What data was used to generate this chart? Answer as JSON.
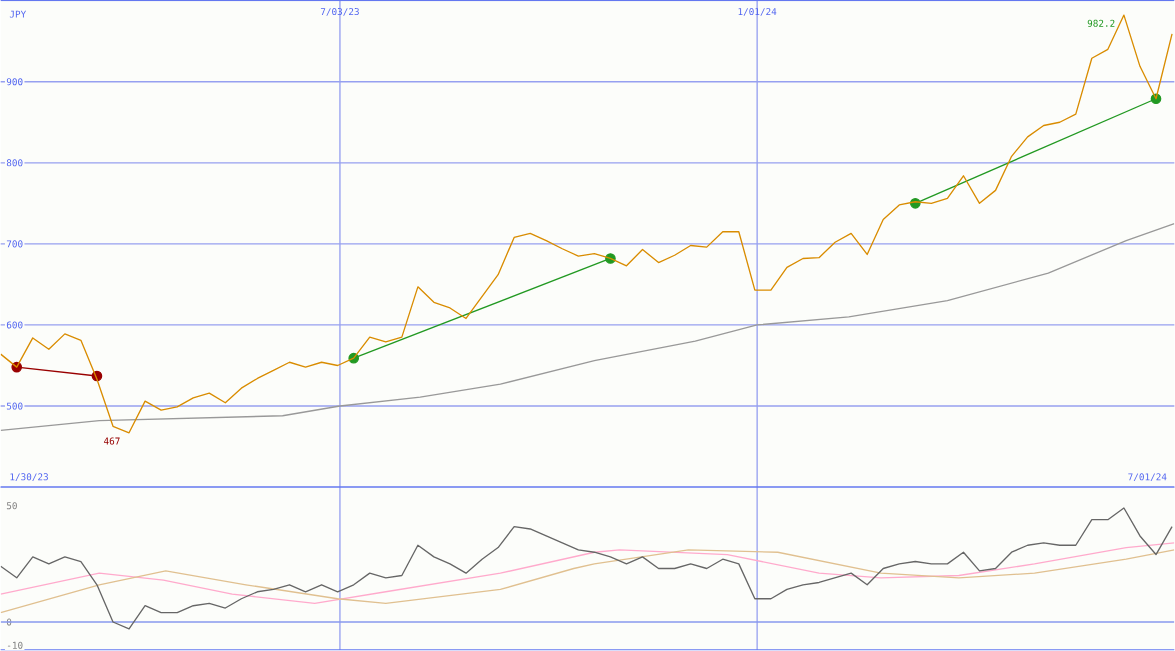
{
  "chart_data": [
    {
      "type": "line",
      "ylabel": "JPY",
      "xlim": [
        "2023-02-05",
        "2024-07-01"
      ],
      "ylim": [
        400,
        1000
      ],
      "xticks": [
        {
          "value": "2023-07-03",
          "label": "7/03/23"
        },
        {
          "value": "2024-01-01",
          "label": "1/01/24"
        }
      ],
      "yticks": [
        500,
        600,
        700,
        800,
        900
      ],
      "grid": true,
      "series": [
        {
          "color": "#999999",
          "x": [
            "2023-02-05",
            "2023-03-20",
            "2023-06-08",
            "2023-07-03",
            "2023-08-07",
            "2023-09-11",
            "2023-10-22",
            "2023-12-05",
            "2024-01-01",
            "2024-02-10",
            "2024-03-24",
            "2024-05-07",
            "2024-06-10",
            "2024-07-01"
          ],
          "values": [
            470,
            482,
            488,
            500,
            511,
            527,
            556,
            580,
            600,
            610,
            630,
            664,
            704,
            725
          ]
        },
        {
          "color": "#990000",
          "marker": "circle",
          "x": [
            "2023-02-12",
            "2023-03-19"
          ],
          "values": [
            548,
            537
          ]
        },
        {
          "color": "#229922",
          "marker": "circle",
          "x": [
            "2023-07-09",
            "2023-10-29"
          ],
          "values": [
            559,
            682
          ]
        },
        {
          "color": "#229922",
          "marker": "circle",
          "x": [
            "2024-03-10",
            "2024-06-23"
          ],
          "values": [
            750,
            879
          ]
        },
        {
          "color": "#d98c00",
          "x": [
            "2023-02-05",
            "2023-02-12",
            "2023-02-19",
            "2023-02-26",
            "2023-03-05",
            "2023-03-12",
            "2023-03-19",
            "2023-03-26",
            "2023-04-02",
            "2023-04-09",
            "2023-04-16",
            "2023-04-23",
            "2023-04-30",
            "2023-05-07",
            "2023-05-14",
            "2023-05-21",
            "2023-05-28",
            "2023-06-04",
            "2023-06-11",
            "2023-06-18",
            "2023-06-25",
            "2023-07-02",
            "2023-07-09",
            "2023-07-16",
            "2023-07-23",
            "2023-07-30",
            "2023-08-06",
            "2023-08-13",
            "2023-08-20",
            "2023-08-27",
            "2023-09-03",
            "2023-09-10",
            "2023-09-17",
            "2023-09-24",
            "2023-10-01",
            "2023-10-08",
            "2023-10-15",
            "2023-10-22",
            "2023-10-29",
            "2023-11-05",
            "2023-11-12",
            "2023-11-19",
            "2023-11-26",
            "2023-12-03",
            "2023-12-10",
            "2023-12-17",
            "2023-12-24",
            "2023-12-31",
            "2024-01-07",
            "2024-01-14",
            "2024-01-21",
            "2024-01-28",
            "2024-02-04",
            "2024-02-11",
            "2024-02-18",
            "2024-02-25",
            "2024-03-03",
            "2024-03-10",
            "2024-03-17",
            "2024-03-24",
            "2024-03-31",
            "2024-04-07",
            "2024-04-14",
            "2024-04-21",
            "2024-04-28",
            "2024-05-05",
            "2024-05-12",
            "2024-05-19",
            "2024-05-26",
            "2024-06-02",
            "2024-06-09",
            "2024-06-16",
            "2024-06-23",
            "2024-06-30"
          ],
          "values": [
            564,
            548,
            584,
            570,
            589,
            581,
            533,
            475,
            467,
            506,
            495,
            499,
            510,
            516,
            504,
            522,
            534,
            544,
            554,
            548,
            554,
            550,
            559,
            585,
            579,
            585,
            647,
            628,
            621,
            608,
            635,
            662,
            708,
            713,
            704,
            694,
            685,
            688,
            682,
            673,
            693,
            677,
            686,
            698,
            696,
            715,
            715,
            643,
            643,
            671,
            682,
            683,
            702,
            713,
            687,
            730,
            748,
            752,
            750,
            756,
            784,
            750,
            766,
            808,
            832,
            846,
            850,
            860,
            929,
            940,
            982.2,
            919,
            879,
            959
          ]
        }
      ],
      "annotations": [
        "1/30/23",
        "7/01/24",
        {
          "text": "467",
          "x": "2023-04-02",
          "y": 467
        },
        {
          "text": "982.2",
          "x": "2024-06-09",
          "y": 982.2
        }
      ]
    },
    {
      "type": "line",
      "xlim": [
        "2023-02-05",
        "2024-07-01"
      ],
      "ylim": [
        -12,
        58
      ],
      "xticks": [
        {
          "value": "2023-07-03",
          "label": null
        },
        {
          "value": "2024-01-01",
          "label": null
        }
      ],
      "yticks": [
        -10,
        0,
        50
      ],
      "grid": "x",
      "tick_labels": "y",
      "ref_lines": [
        {
          "axis": "y",
          "value": 0,
          "color": "#8899ee"
        }
      ],
      "series": [
        {
          "color": "#ffaacc",
          "x": [
            "2023-02-05",
            "2023-03-20",
            "2023-04-17",
            "2023-05-17",
            "2023-06-22",
            "2023-07-23",
            "2023-09-11",
            "2023-10-22",
            "2023-11-02",
            "2023-12-19",
            "2024-01-28",
            "2024-02-24",
            "2024-03-29",
            "2024-05-01",
            "2024-06-10",
            "2024-07-01"
          ],
          "values": [
            12,
            21,
            18,
            12,
            8,
            13,
            21,
            30,
            31,
            29,
            21,
            19,
            20,
            25,
            32,
            34
          ]
        },
        {
          "color": "#e0c090",
          "x": [
            "2023-02-05",
            "2023-03-20",
            "2023-04-18",
            "2023-05-23",
            "2023-07-02",
            "2023-07-23",
            "2023-09-11",
            "2023-10-13",
            "2023-10-22",
            "2023-12-02",
            "2024-01-10",
            "2024-02-24",
            "2024-03-29",
            "2024-05-01",
            "2024-06-10",
            "2024-07-01"
          ],
          "values": [
            4,
            16,
            22,
            16,
            10,
            8,
            14,
            23,
            25,
            31,
            30,
            21,
            19,
            21,
            27,
            31
          ]
        },
        {
          "color": "#666666",
          "x": [
            "2023-02-05",
            "2023-02-12",
            "2023-02-19",
            "2023-02-26",
            "2023-03-05",
            "2023-03-12",
            "2023-03-19",
            "2023-03-26",
            "2023-04-02",
            "2023-04-09",
            "2023-04-16",
            "2023-04-23",
            "2023-04-30",
            "2023-05-07",
            "2023-05-14",
            "2023-05-21",
            "2023-05-28",
            "2023-06-04",
            "2023-06-11",
            "2023-06-18",
            "2023-06-25",
            "2023-07-02",
            "2023-07-09",
            "2023-07-16",
            "2023-07-23",
            "2023-07-30",
            "2023-08-06",
            "2023-08-13",
            "2023-08-20",
            "2023-08-27",
            "2023-09-03",
            "2023-09-10",
            "2023-09-17",
            "2023-09-24",
            "2023-10-01",
            "2023-10-08",
            "2023-10-15",
            "2023-10-22",
            "2023-10-29",
            "2023-11-05",
            "2023-11-12",
            "2023-11-19",
            "2023-11-26",
            "2023-12-03",
            "2023-12-10",
            "2023-12-17",
            "2023-12-24",
            "2023-12-31",
            "2024-01-07",
            "2024-01-14",
            "2024-01-21",
            "2024-01-28",
            "2024-02-04",
            "2024-02-11",
            "2024-02-18",
            "2024-02-25",
            "2024-03-03",
            "2024-03-10",
            "2024-03-17",
            "2024-03-24",
            "2024-03-31",
            "2024-04-07",
            "2024-04-14",
            "2024-04-21",
            "2024-04-28",
            "2024-05-05",
            "2024-05-12",
            "2024-05-19",
            "2024-05-26",
            "2024-06-02",
            "2024-06-09",
            "2024-06-16",
            "2024-06-23",
            "2024-06-30"
          ],
          "values": [
            24,
            19,
            28,
            25,
            28,
            26,
            16,
            0,
            -3,
            7,
            4,
            4,
            7,
            8,
            6,
            10,
            13,
            14,
            16,
            13,
            16,
            13,
            16,
            21,
            19,
            20,
            33,
            28,
            25,
            21,
            27,
            32,
            41,
            40,
            37,
            34,
            31,
            30,
            28,
            25,
            28,
            23,
            23,
            25,
            23,
            27,
            25,
            10,
            10,
            14,
            16,
            17,
            19,
            21,
            16,
            23,
            25,
            26,
            25,
            25,
            30,
            22,
            23,
            30,
            33,
            34,
            33,
            33,
            44,
            44,
            49,
            37,
            29,
            41
          ]
        }
      ]
    }
  ]
}
